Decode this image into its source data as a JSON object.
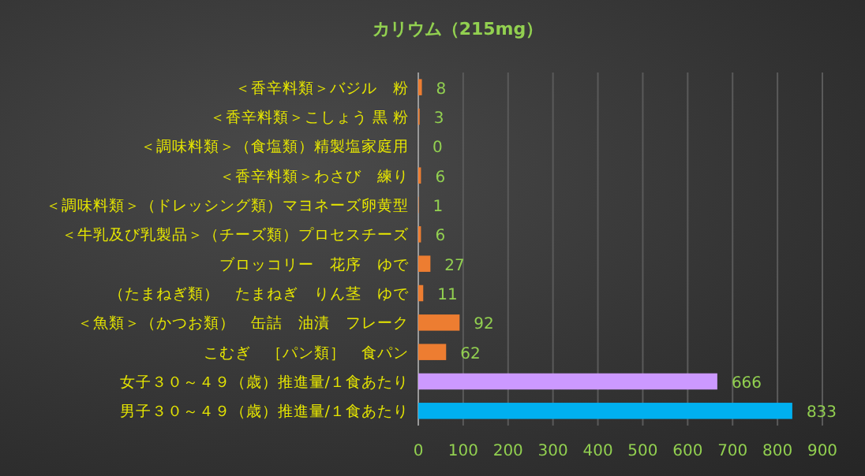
{
  "chart_data": {
    "type": "bar",
    "orientation": "horizontal",
    "title": "カリウム（215mg）",
    "categories": [
      "＜香辛料類＞バジル　粉",
      "＜香辛料類＞こしょう 黒 粉",
      "＜調味料類＞（食塩類）精製塩家庭用",
      "＜香辛料類＞わさび　練り",
      "＜調味料類＞（ドレッシング類）マヨネーズ卵黄型",
      "＜牛乳及び乳製品＞（チーズ類）プロセスチーズ",
      "ブロッコリー　花序　ゆで",
      "（たまねぎ類）　たまねぎ　りん茎　ゆで",
      "＜魚類＞（かつお類）　缶詰　油漬　フレーク",
      "こむぎ　［パン類］　食パン",
      "女子３０～４９（歳）推進量/１食あたり",
      "男子３０～４９（歳）推進量/１食あたり"
    ],
    "values": [
      8,
      3,
      0,
      6,
      1,
      6,
      27,
      11,
      92,
      62,
      666,
      833
    ],
    "colors": [
      "#ed7d31",
      "#ed7d31",
      "#ed7d31",
      "#ed7d31",
      "#ed7d31",
      "#ed7d31",
      "#ed7d31",
      "#ed7d31",
      "#ed7d31",
      "#ed7d31",
      "#cc99ff",
      "#00b0f0"
    ],
    "data_labels": true,
    "grid": "x",
    "xlim": [
      0,
      900
    ],
    "xticks": [
      0,
      100,
      200,
      300,
      400,
      500,
      600,
      700,
      800,
      900
    ]
  }
}
